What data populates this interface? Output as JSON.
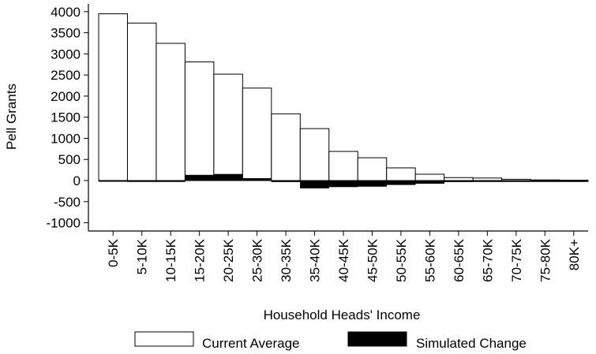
{
  "chart_data": {
    "type": "bar",
    "title": "",
    "xlabel": "Household Heads' Income",
    "ylabel": "Pell Grants",
    "ylim": [
      -1100,
      4100
    ],
    "yticks": [
      4000,
      3500,
      3000,
      2500,
      2000,
      1500,
      1000,
      500,
      0,
      -500,
      -1000
    ],
    "categories": [
      "0-5K",
      "5-10K",
      "10-15K",
      "15-20K",
      "20-25K",
      "25-30K",
      "30-35K",
      "35-40K",
      "40-45K",
      "45-50K",
      "50-55K",
      "55-60K",
      "60-65K",
      "65-70K",
      "70-75K",
      "75-80K",
      "80K+"
    ],
    "series": [
      {
        "name": "Current Average",
        "color": "#ffffff",
        "values": [
          3950,
          3730,
          3250,
          2810,
          2520,
          2190,
          1580,
          1230,
          690,
          540,
          300,
          150,
          70,
          60,
          30,
          15,
          10
        ]
      },
      {
        "name": "Simulated Change",
        "color": "#000000",
        "values": [
          5,
          0,
          -20,
          130,
          150,
          50,
          -30,
          -180,
          -150,
          -140,
          -100,
          -70,
          -30,
          -20,
          -10,
          -5,
          -5
        ]
      }
    ],
    "legend_position": "bottom",
    "grid": false
  }
}
